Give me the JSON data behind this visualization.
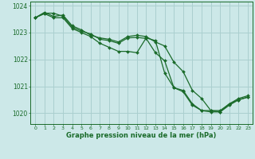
{
  "title": "Graphe pression niveau de la mer (hPa)",
  "background_color": "#cce8e8",
  "grid_color": "#aacfcf",
  "line_color": "#1a6b2a",
  "xlim": [
    -0.5,
    23.5
  ],
  "ylim": [
    1019.6,
    1024.15
  ],
  "yticks": [
    1020,
    1021,
    1022,
    1023,
    1024
  ],
  "xticks": [
    0,
    1,
    2,
    3,
    4,
    5,
    6,
    7,
    8,
    9,
    10,
    11,
    12,
    13,
    14,
    15,
    16,
    17,
    18,
    19,
    20,
    21,
    22,
    23
  ],
  "series": [
    [
      1023.55,
      1023.75,
      1023.6,
      1023.65,
      1023.25,
      1023.1,
      1022.9,
      1022.8,
      1022.75,
      1022.65,
      1022.85,
      1022.9,
      1022.85,
      1022.65,
      1022.5,
      1021.9,
      1021.55,
      1020.85,
      1020.55,
      1020.1,
      1020.1,
      1020.35,
      1020.55,
      1020.65
    ],
    [
      1023.55,
      1023.7,
      1023.55,
      1023.55,
      1023.15,
      1023.0,
      1022.85,
      1022.6,
      1022.45,
      1022.3,
      1022.3,
      1022.25,
      1022.8,
      1022.7,
      1021.5,
      1020.95,
      1020.8,
      1020.3,
      1020.1,
      1020.1,
      1020.05,
      1020.3,
      1020.5,
      1020.6
    ],
    [
      1023.55,
      1023.72,
      1023.72,
      1023.6,
      1023.2,
      1023.05,
      1022.95,
      1022.75,
      1022.7,
      1022.6,
      1022.8,
      1022.82,
      1022.78,
      1022.25,
      1021.95,
      1020.95,
      1020.85,
      1020.35,
      1020.1,
      1020.05,
      1020.05,
      1020.35,
      1020.5,
      1020.6
    ]
  ]
}
